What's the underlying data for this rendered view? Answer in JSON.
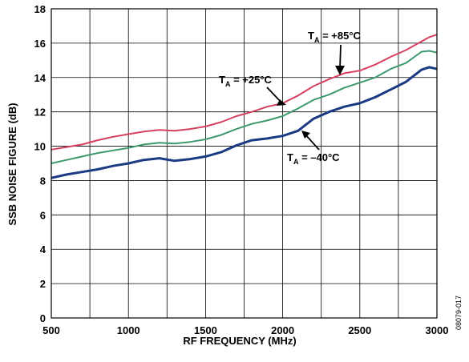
{
  "chart_data": {
    "type": "line",
    "title": "",
    "xlabel": "RF FREQUENCY (MHz)",
    "ylabel": "SSB NOISE FIGURE (dB)",
    "xlim": [
      500,
      3000
    ],
    "ylim": [
      0,
      18
    ],
    "x_ticks": [
      500,
      1000,
      1500,
      2000,
      2500,
      3000
    ],
    "y_ticks": [
      0,
      2,
      4,
      6,
      8,
      10,
      12,
      14,
      16,
      18
    ],
    "grid": true,
    "x": [
      500,
      600,
      700,
      800,
      900,
      1000,
      1100,
      1200,
      1300,
      1400,
      1500,
      1600,
      1700,
      1800,
      1900,
      2000,
      2100,
      2200,
      2300,
      2400,
      2500,
      2600,
      2700,
      2800,
      2900,
      2950,
      3000
    ],
    "series": [
      {
        "color": "#d6405e",
        "values": [
          9.8,
          9.95,
          10.1,
          10.35,
          10.55,
          10.7,
          10.85,
          10.95,
          10.9,
          11.0,
          11.15,
          11.4,
          11.75,
          12.0,
          12.3,
          12.5,
          12.95,
          13.5,
          13.9,
          14.25,
          14.4,
          14.75,
          15.2,
          15.6,
          16.1,
          16.35,
          16.5
        ]
      },
      {
        "color": "#3d9a6e",
        "values": [
          9.0,
          9.2,
          9.4,
          9.6,
          9.75,
          9.9,
          10.1,
          10.2,
          10.15,
          10.25,
          10.4,
          10.65,
          11.0,
          11.3,
          11.5,
          11.75,
          12.2,
          12.7,
          13.0,
          13.4,
          13.7,
          14.0,
          14.5,
          14.85,
          15.5,
          15.55,
          15.45
        ]
      },
      {
        "color": "#1a3b84",
        "values": [
          8.15,
          8.35,
          8.5,
          8.65,
          8.85,
          9.0,
          9.2,
          9.3,
          9.15,
          9.25,
          9.4,
          9.65,
          10.05,
          10.35,
          10.45,
          10.6,
          10.9,
          11.6,
          12.0,
          12.3,
          12.5,
          12.85,
          13.3,
          13.75,
          14.45,
          14.6,
          14.5
        ]
      }
    ],
    "annotations": [
      {
        "main": "T",
        "sub": "A",
        "rest": " = +85°C"
      },
      {
        "main": "T",
        "sub": "A",
        "rest": " = +25°C"
      },
      {
        "main": "T",
        "sub": "A",
        "rest": " = –40°C"
      }
    ]
  },
  "figure_id": "08079-017"
}
